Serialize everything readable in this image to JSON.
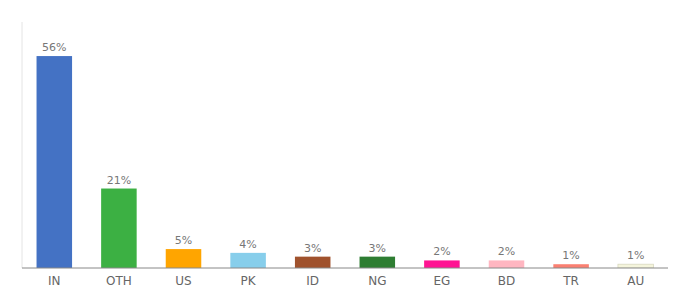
{
  "chart_data": {
    "type": "bar",
    "categories": [
      "IN",
      "OTH",
      "US",
      "PK",
      "ID",
      "NG",
      "EG",
      "BD",
      "TR",
      "AU"
    ],
    "values": [
      56,
      21,
      5,
      4,
      3,
      3,
      2,
      2,
      1,
      1
    ],
    "value_labels": [
      "56%",
      "21%",
      "5%",
      "4%",
      "3%",
      "3%",
      "2%",
      "2%",
      "1%",
      "1%"
    ],
    "colors": [
      "#4472C4",
      "#3CB043",
      "#FFA500",
      "#87CEEB",
      "#A0522D",
      "#2E7D32",
      "#FF1493",
      "#FFB6C1",
      "#FA8072",
      "#F5F5DC"
    ],
    "ylim": [
      0,
      65
    ],
    "data_labels": true,
    "grid": false,
    "tick_labels": "x"
  }
}
